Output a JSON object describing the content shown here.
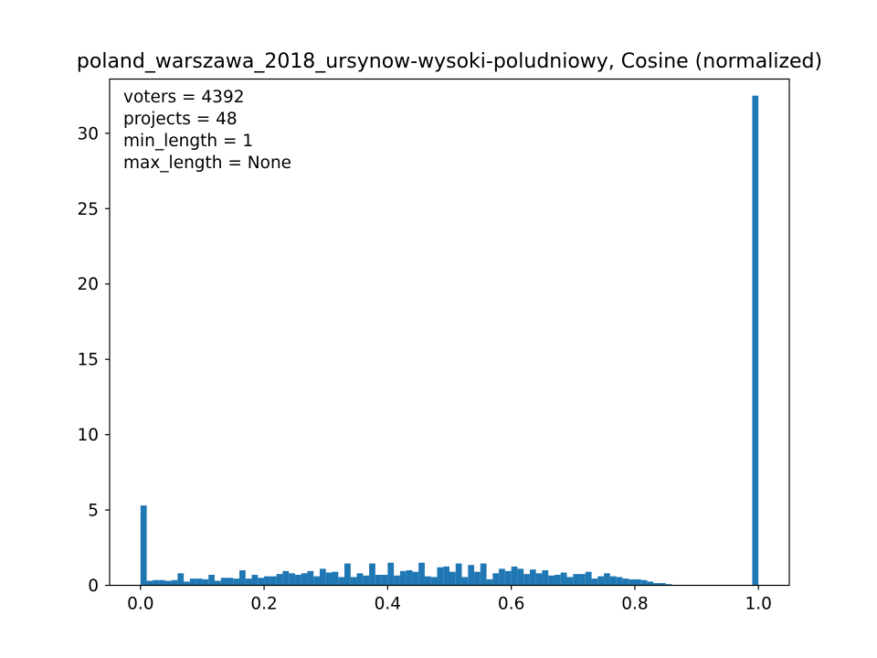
{
  "chart_data": {
    "type": "bar",
    "title": "poland_warszawa_2018_ursynow-wysoki-poludniowy, Cosine (normalized)",
    "xlabel": "",
    "ylabel": "",
    "xlim": [
      -0.05,
      1.05
    ],
    "ylim": [
      0,
      33.6
    ],
    "xticks": [
      "0.0",
      "0.2",
      "0.4",
      "0.6",
      "0.8",
      "1.0"
    ],
    "yticks": [
      "0",
      "5",
      "10",
      "15",
      "20",
      "25",
      "30"
    ],
    "bin_width": 0.01,
    "bar_color": "#1f77b4",
    "annotations": [
      "voters = 4392",
      "projects = 48",
      "min_length = 1",
      "max_length = None"
    ],
    "x": [
      0.0,
      0.01,
      0.02,
      0.03,
      0.04,
      0.05,
      0.06,
      0.07,
      0.08,
      0.09,
      0.1,
      0.11,
      0.12,
      0.13,
      0.14,
      0.15,
      0.16,
      0.17,
      0.18,
      0.19,
      0.2,
      0.21,
      0.22,
      0.23,
      0.24,
      0.25,
      0.26,
      0.27,
      0.28,
      0.29,
      0.3,
      0.31,
      0.32,
      0.33,
      0.34,
      0.35,
      0.36,
      0.37,
      0.38,
      0.39,
      0.4,
      0.41,
      0.42,
      0.43,
      0.44,
      0.45,
      0.46,
      0.47,
      0.48,
      0.49,
      0.5,
      0.51,
      0.52,
      0.53,
      0.54,
      0.55,
      0.56,
      0.57,
      0.58,
      0.59,
      0.6,
      0.61,
      0.62,
      0.63,
      0.64,
      0.65,
      0.66,
      0.67,
      0.68,
      0.69,
      0.7,
      0.71,
      0.72,
      0.73,
      0.74,
      0.75,
      0.76,
      0.77,
      0.78,
      0.79,
      0.8,
      0.81,
      0.82,
      0.83,
      0.84,
      0.85,
      0.86,
      0.87,
      0.88,
      0.89,
      0.9,
      0.91,
      0.92,
      0.93,
      0.94,
      0.95,
      0.96,
      0.97,
      0.98,
      0.99
    ],
    "values": [
      5.3,
      0.3,
      0.35,
      0.35,
      0.3,
      0.35,
      0.8,
      0.25,
      0.45,
      0.45,
      0.4,
      0.7,
      0.3,
      0.5,
      0.5,
      0.45,
      1.0,
      0.45,
      0.7,
      0.5,
      0.6,
      0.6,
      0.75,
      0.95,
      0.8,
      0.7,
      0.8,
      0.95,
      0.6,
      1.1,
      0.85,
      0.9,
      0.55,
      1.45,
      0.55,
      0.8,
      0.65,
      1.45,
      0.7,
      0.7,
      1.5,
      0.65,
      0.95,
      1.0,
      0.9,
      1.5,
      0.6,
      0.55,
      1.2,
      1.25,
      0.9,
      1.45,
      0.55,
      1.35,
      0.9,
      1.45,
      0.4,
      0.8,
      1.1,
      0.95,
      1.25,
      1.1,
      0.75,
      1.05,
      0.8,
      1.0,
      0.65,
      0.7,
      0.85,
      0.55,
      0.75,
      0.75,
      0.9,
      0.45,
      0.6,
      0.8,
      0.6,
      0.55,
      0.45,
      0.4,
      0.4,
      0.35,
      0.25,
      0.15,
      0.15,
      0.08,
      0.03,
      0.02,
      0.01,
      0.01,
      0.0,
      0.0,
      0.0,
      0.0,
      0.0,
      0.0,
      0.0,
      0.0,
      0.0,
      32.5
    ]
  }
}
